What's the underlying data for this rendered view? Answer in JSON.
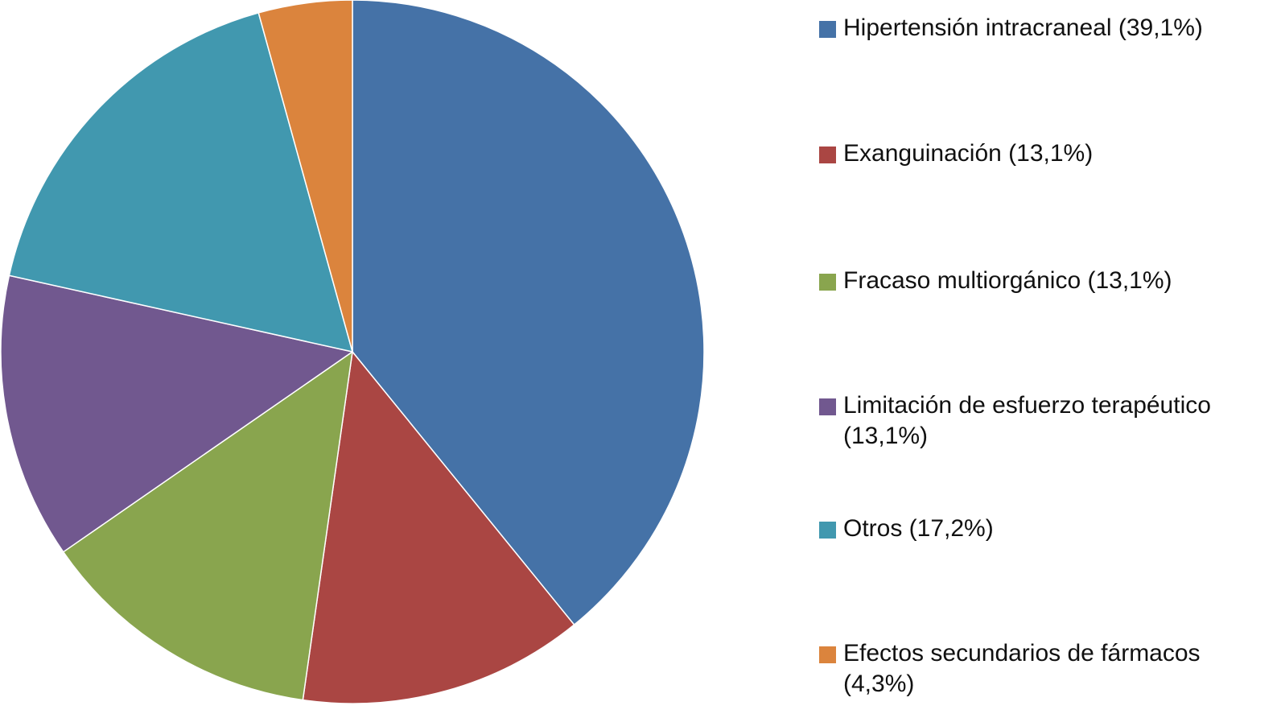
{
  "chart_data": {
    "type": "pie",
    "title": "",
    "start_angle_deg": 0,
    "direction": "clockwise",
    "legend_position": "right",
    "slices": [
      {
        "label": "Hipertensión intracraneal (39,1%)",
        "value": 39.1,
        "color": "#4572A7"
      },
      {
        "label": "Exanguinación (13,1%)",
        "value": 13.1,
        "color": "#AA4643"
      },
      {
        "label": "Fracaso multiorgánico (13,1%)",
        "value": 13.1,
        "color": "#89A54E"
      },
      {
        "label": "Limitación de esfuerzo terapéutico (13,1%)",
        "value": 13.1,
        "color": "#71588F"
      },
      {
        "label": "Otros (17,2%)",
        "value": 17.2,
        "color": "#4198AF"
      },
      {
        "label": "Efectos secundarios de fármacos (4,3%)",
        "value": 4.3,
        "color": "#DB843D"
      }
    ]
  }
}
